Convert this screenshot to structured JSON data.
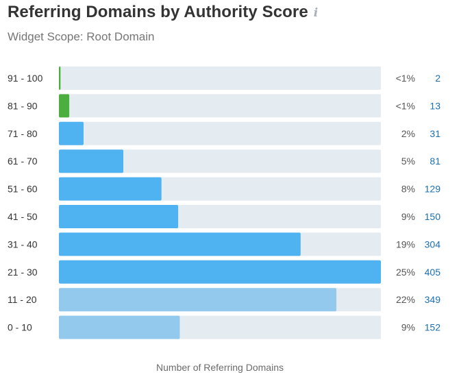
{
  "header": {
    "title": "Referring Domains by Authority Score",
    "subtitle": "Widget Scope: Root Domain",
    "info_icon": "i"
  },
  "colors": {
    "track": "#e4ebf1",
    "green": "#4caf3d",
    "blue": "#4fb2f1",
    "light_blue": "#93c9ec",
    "label": "#333333",
    "percent": "#555555",
    "count": "#1b6fb3"
  },
  "chart_data": {
    "type": "bar",
    "orientation": "horizontal",
    "xlabel": "Number of Referring Domains",
    "xlim": [
      0,
      405
    ],
    "grid": false,
    "rows": [
      {
        "category": "91 - 100",
        "value": 2,
        "percent": "<1%",
        "count": "2",
        "color": "green"
      },
      {
        "category": "81 - 90",
        "value": 13,
        "percent": "<1%",
        "count": "13",
        "color": "green"
      },
      {
        "category": "71 - 80",
        "value": 31,
        "percent": "2%",
        "count": "31",
        "color": "blue"
      },
      {
        "category": "61 - 70",
        "value": 81,
        "percent": "5%",
        "count": "81",
        "color": "blue"
      },
      {
        "category": "51 - 60",
        "value": 129,
        "percent": "8%",
        "count": "129",
        "color": "blue"
      },
      {
        "category": "41 - 50",
        "value": 150,
        "percent": "9%",
        "count": "150",
        "color": "blue"
      },
      {
        "category": "31 - 40",
        "value": 304,
        "percent": "19%",
        "count": "304",
        "color": "blue"
      },
      {
        "category": "21 - 30",
        "value": 405,
        "percent": "25%",
        "count": "405",
        "color": "blue"
      },
      {
        "category": "11 - 20",
        "value": 349,
        "percent": "22%",
        "count": "349",
        "color": "light_blue"
      },
      {
        "category": "0 - 10",
        "value": 152,
        "percent": "9%",
        "count": "152",
        "color": "light_blue"
      }
    ]
  }
}
